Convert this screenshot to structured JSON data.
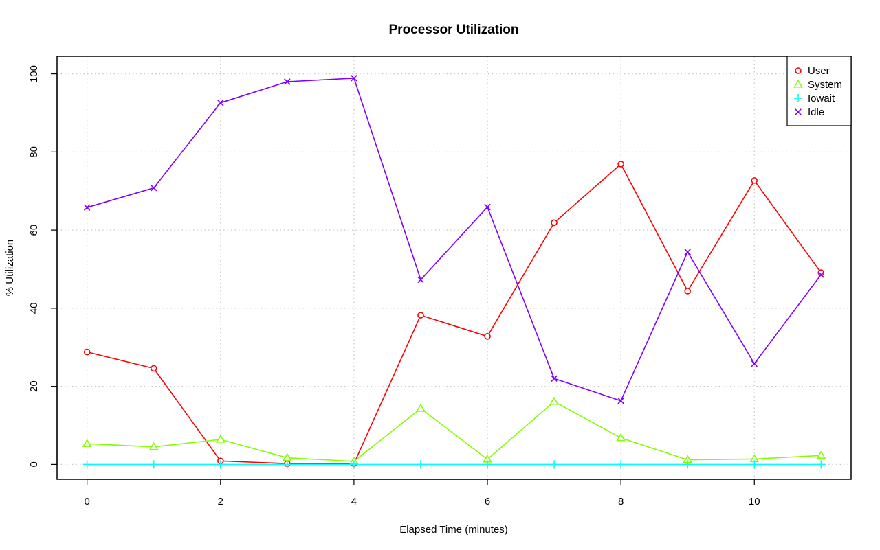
{
  "chart_data": {
    "type": "line",
    "title": "Processor Utilization",
    "xlabel": "Elapsed Time (minutes)",
    "ylabel": "% Utilization",
    "xlim": [
      -0.45,
      11.45
    ],
    "ylim": [
      -3.8,
      104.5
    ],
    "x_ticks": [
      0,
      2,
      4,
      6,
      8,
      10
    ],
    "y_ticks": [
      0,
      20,
      40,
      60,
      80,
      100
    ],
    "grid": true,
    "legend_position": "top-right",
    "x": [
      0,
      1,
      2,
      3,
      4,
      5,
      6,
      7,
      8,
      9,
      10,
      11
    ],
    "series": [
      {
        "name": "User",
        "color": "#ff0000",
        "marker": "circle",
        "values": [
          28.8,
          24.6,
          0.9,
          0.2,
          0.2,
          38.2,
          32.8,
          61.9,
          76.9,
          44.4,
          72.7,
          49.1
        ]
      },
      {
        "name": "System",
        "color": "#80ff00",
        "marker": "triangle",
        "values": [
          5.3,
          4.5,
          6.4,
          1.7,
          0.8,
          14.3,
          1.3,
          16.1,
          6.8,
          1.2,
          1.4,
          2.3
        ]
      },
      {
        "name": "Iowait",
        "color": "#00ffff",
        "marker": "plus",
        "values": [
          0,
          0,
          0,
          0,
          0,
          0,
          0,
          0,
          0,
          0,
          0,
          0
        ]
      },
      {
        "name": "Idle",
        "color": "#8000ff",
        "marker": "cross",
        "values": [
          65.8,
          70.8,
          92.6,
          98.0,
          98.9,
          47.3,
          65.9,
          22.0,
          16.3,
          54.4,
          25.8,
          48.6
        ]
      }
    ]
  }
}
